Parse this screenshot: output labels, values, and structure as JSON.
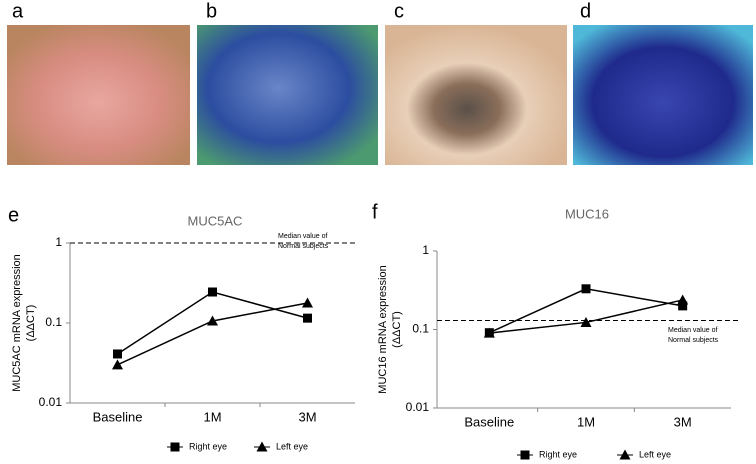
{
  "panels": [
    {
      "label": "a"
    },
    {
      "label": "b"
    },
    {
      "label": "c"
    },
    {
      "label": "d"
    }
  ],
  "chart_data": [
    {
      "type": "line",
      "panel_label": "e",
      "title": "MUC5AC",
      "y_label": [
        "MUC5AC mRNA expression",
        "(ΔΔCT)"
      ],
      "categories": [
        "Baseline",
        "1M",
        "3M"
      ],
      "log_scale": true,
      "ylim": [
        0.01,
        1
      ],
      "yticks": [
        0.01,
        0.1,
        1
      ],
      "series": [
        {
          "name": "Right eye",
          "color": "#000000",
          "marker": "square",
          "values": [
            0.041,
            0.244,
            0.115
          ]
        },
        {
          "name": "Left eye",
          "color": "#000000",
          "marker": "triangle",
          "values": [
            0.03,
            0.106,
            0.178
          ]
        }
      ],
      "reference_line": {
        "value": 1,
        "label": [
          "Median value of",
          "Normal subjects"
        ]
      }
    },
    {
      "type": "line",
      "panel_label": "f",
      "title": "MUC16",
      "y_label": [
        "MUC16 mRNA expression",
        "(ΔΔCT)"
      ],
      "categories": [
        "Baseline",
        "1M",
        "3M"
      ],
      "log_scale": true,
      "ylim": [
        0.01,
        1
      ],
      "yticks": [
        0.01,
        0.1,
        1
      ],
      "series": [
        {
          "name": "Right eye",
          "color": "#000000",
          "marker": "square",
          "values": [
            0.091,
            0.33,
            0.2
          ]
        },
        {
          "name": "Left eye",
          "color": "#000000",
          "marker": "triangle",
          "values": [
            0.09,
            0.123,
            0.238
          ]
        }
      ],
      "reference_line": {
        "value": 0.13,
        "label": [
          "Median value of",
          "Normal subjects"
        ]
      }
    }
  ]
}
